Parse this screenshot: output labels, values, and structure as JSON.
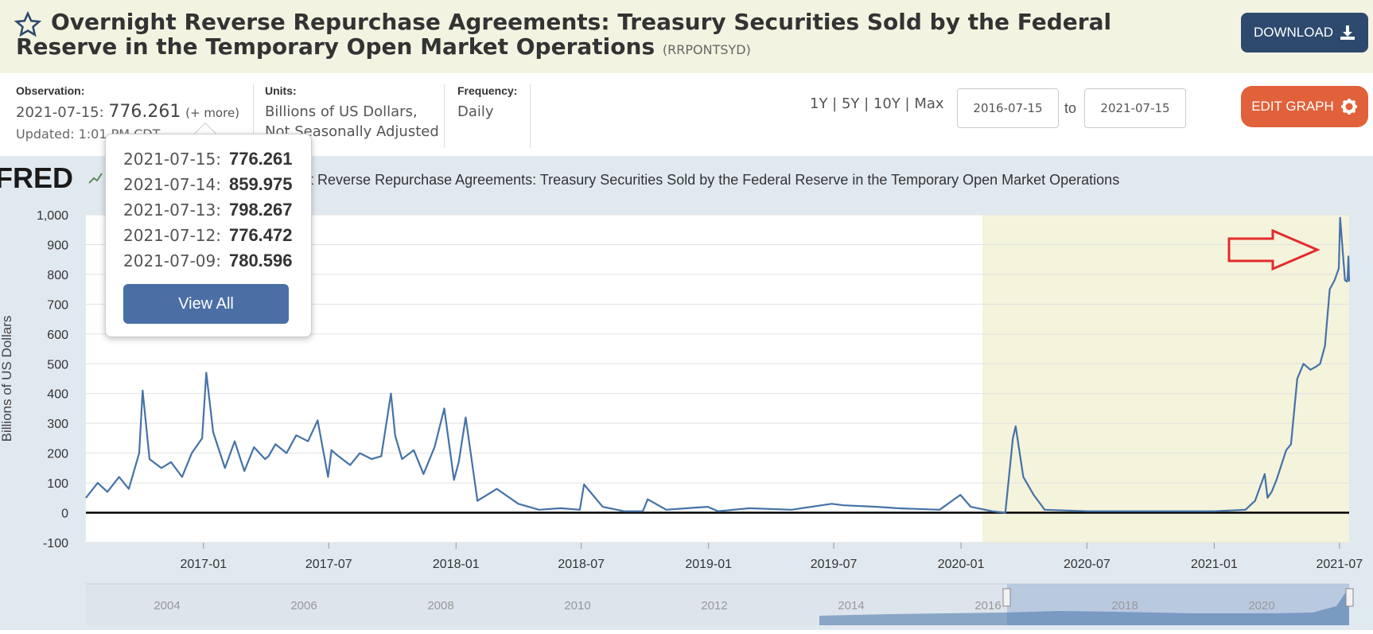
{
  "header": {
    "title": "Overnight Reverse Repurchase Agreements: Treasury Securities Sold by the Federal Reserve in the Temporary Open Market Operations",
    "series_code": "(RRPONTSYD)",
    "download_label": "DOWNLOAD"
  },
  "meta": {
    "observation_label": "Observation:",
    "observation_date": "2021-07-15:",
    "observation_value": "776.261",
    "more_label": "(+ more)",
    "updated": "Updated: 1:01 PM CDT",
    "units_label": "Units:",
    "units_line1": "Billions of US Dollars,",
    "units_line2": "Not Seasonally Adjusted",
    "frequency_label": "Frequency:",
    "frequency_value": "Daily"
  },
  "controls": {
    "ranges": "1Y | 5Y | 10Y | Max",
    "start_date": "2016-07-15",
    "to_label": "to",
    "end_date": "2021-07-15",
    "edit_label": "EDIT GRAPH"
  },
  "popup": {
    "rows": [
      {
        "date": "2021-07-15:",
        "value": "776.261"
      },
      {
        "date": "2021-07-14:",
        "value": "859.975"
      },
      {
        "date": "2021-07-13:",
        "value": "798.267"
      },
      {
        "date": "2021-07-12:",
        "value": "776.472"
      },
      {
        "date": "2021-07-09:",
        "value": "780.596"
      }
    ],
    "view_all_label": "View All"
  },
  "colors": {
    "line": "#4572a7",
    "recession": "#f4f3dc",
    "arrow": "#e32b2b",
    "download_btn": "#2d4a6e",
    "edit_btn": "#e0613a"
  },
  "chart_data": {
    "type": "line",
    "logo": "FRED",
    "title": "Overnight Reverse Repurchase Agreements: Treasury Securities Sold by the Federal Reserve in the Temporary Open Market Operations",
    "ylabel": "Billions of US Dollars",
    "ylim": [
      -100,
      1000
    ],
    "yticks": [
      -100,
      0,
      100,
      200,
      300,
      400,
      500,
      600,
      700,
      800,
      900,
      1000
    ],
    "ytick_labels": [
      "-100",
      "0",
      "100",
      "200",
      "300",
      "400",
      "500",
      "600",
      "700",
      "800",
      "900",
      "1,000"
    ],
    "xlim": [
      "2016-07-15",
      "2021-07-15"
    ],
    "x_ticks": [
      "2017-01",
      "2017-07",
      "2018-01",
      "2018-07",
      "2019-01",
      "2019-07",
      "2020-01",
      "2020-07",
      "2021-01",
      "2021-07"
    ],
    "shaded_region": [
      "2020-02-01",
      "2021-07-15"
    ],
    "navigator_labels": [
      "2004",
      "2006",
      "2008",
      "2010",
      "2012",
      "2014",
      "2016",
      "2018",
      "2020"
    ],
    "series": [
      {
        "x": [
          "2016-07-15",
          "2016-08-01",
          "2016-08-15",
          "2016-09-01",
          "2016-09-15",
          "2016-09-30",
          "2016-10-05",
          "2016-10-15",
          "2016-11-01",
          "2016-11-15",
          "2016-12-01",
          "2016-12-15",
          "2016-12-30",
          "2017-01-05",
          "2017-01-15",
          "2017-02-01",
          "2017-02-15",
          "2017-03-01",
          "2017-03-15",
          "2017-03-31",
          "2017-04-05",
          "2017-04-15",
          "2017-05-01",
          "2017-05-15",
          "2017-06-01",
          "2017-06-15",
          "2017-06-30",
          "2017-07-05",
          "2017-07-15",
          "2017-08-01",
          "2017-08-15",
          "2017-09-01",
          "2017-09-15",
          "2017-09-29",
          "2017-10-05",
          "2017-10-15",
          "2017-11-01",
          "2017-11-15",
          "2017-12-01",
          "2017-12-15",
          "2017-12-29",
          "2018-01-05",
          "2018-01-15",
          "2018-02-01",
          "2018-03-01",
          "2018-04-01",
          "2018-05-01",
          "2018-06-01",
          "2018-06-29",
          "2018-07-05",
          "2018-08-01",
          "2018-09-01",
          "2018-09-28",
          "2018-10-05",
          "2018-11-01",
          "2018-12-01",
          "2018-12-31",
          "2019-01-15",
          "2019-03-01",
          "2019-05-01",
          "2019-06-28",
          "2019-07-15",
          "2019-09-01",
          "2019-10-01",
          "2019-12-01",
          "2019-12-31",
          "2020-01-15",
          "2020-02-15",
          "2020-03-05",
          "2020-03-16",
          "2020-03-20",
          "2020-03-31",
          "2020-04-15",
          "2020-05-01",
          "2020-07-01",
          "2020-10-01",
          "2021-01-01",
          "2021-02-15",
          "2021-03-01",
          "2021-03-15",
          "2021-03-19",
          "2021-03-25",
          "2021-04-01",
          "2021-04-15",
          "2021-04-22",
          "2021-05-01",
          "2021-05-10",
          "2021-05-20",
          "2021-05-28",
          "2021-06-03",
          "2021-06-10",
          "2021-06-17",
          "2021-06-24",
          "2021-06-30",
          "2021-07-02",
          "2021-07-09",
          "2021-07-12",
          "2021-07-13",
          "2021-07-14",
          "2021-07-15"
        ],
        "values": [
          50,
          100,
          70,
          120,
          80,
          200,
          410,
          180,
          150,
          170,
          120,
          200,
          250,
          470,
          270,
          150,
          240,
          140,
          220,
          180,
          190,
          230,
          200,
          260,
          240,
          310,
          120,
          210,
          190,
          160,
          200,
          180,
          190,
          400,
          260,
          180,
          210,
          130,
          220,
          350,
          110,
          170,
          320,
          40,
          80,
          30,
          10,
          15,
          10,
          95,
          20,
          5,
          5,
          45,
          10,
          15,
          20,
          5,
          15,
          10,
          30,
          25,
          20,
          15,
          10,
          60,
          20,
          5,
          0,
          250,
          290,
          120,
          60,
          10,
          5,
          5,
          5,
          10,
          40,
          130,
          50,
          70,
          110,
          210,
          230,
          450,
          500,
          480,
          490,
          500,
          560,
          750,
          780,
          820,
          990,
          780,
          776,
          798,
          860,
          776
        ]
      }
    ]
  }
}
